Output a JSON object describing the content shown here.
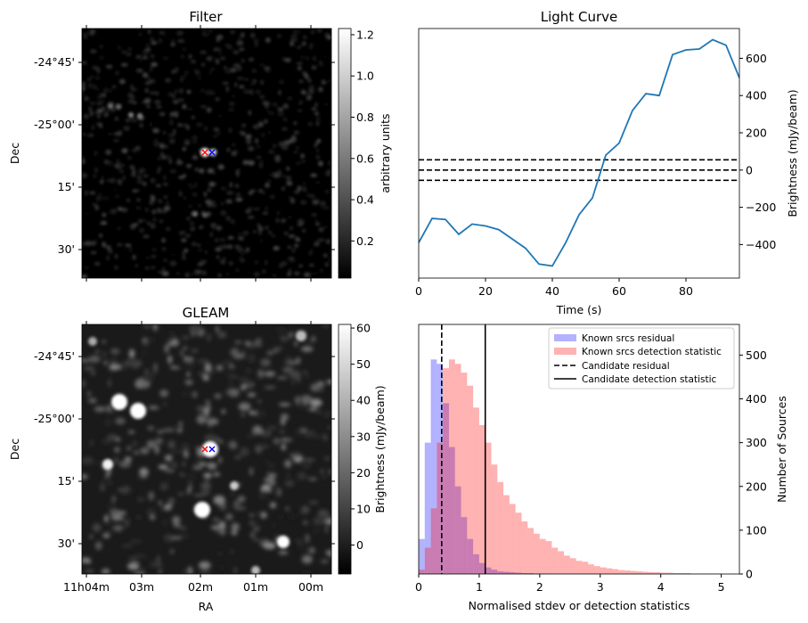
{
  "chart_data": [
    {
      "panel": "filter",
      "type": "heatmap",
      "title": "Filter",
      "xlabel": "",
      "ylabel": "Dec",
      "y_ticks": [
        "-24°45'",
        "-25°00'",
        "15'",
        "30'"
      ],
      "colorbar": {
        "label": "arbitrary units",
        "ticks": [
          "0.2",
          "0.4",
          "0.6",
          "0.8",
          "1.0",
          "1.2"
        ],
        "range": [
          0.02,
          1.23
        ],
        "colormap": "gray"
      },
      "markers": [
        {
          "symbol": "x",
          "color": "#ff0000"
        },
        {
          "symbol": "x",
          "color": "#0000ff"
        }
      ]
    },
    {
      "panel": "light-curve",
      "type": "line",
      "title": "Light Curve",
      "xlabel": "Time (s)",
      "ylabel": "Brightness (mJy/beam)",
      "xlim": [
        0,
        96
      ],
      "ylim": [
        -580,
        760
      ],
      "x_ticks": [
        0,
        20,
        40,
        60,
        80
      ],
      "y_ticks": [
        -400,
        -200,
        0,
        200,
        400,
        600
      ],
      "series": [
        {
          "color": "#1f77b4",
          "x": [
            0,
            4,
            8,
            12,
            16,
            20,
            24,
            28,
            32,
            36,
            40,
            44,
            48,
            52,
            56,
            60,
            64,
            68,
            72,
            76,
            80,
            84,
            88,
            92,
            96
          ],
          "y": [
            -390,
            -260,
            -265,
            -345,
            -290,
            -300,
            -320,
            -370,
            -420,
            -505,
            -515,
            -390,
            -240,
            -150,
            80,
            145,
            320,
            410,
            400,
            620,
            645,
            650,
            700,
            670,
            495
          ]
        }
      ],
      "hlines": [
        {
          "y": 55,
          "style": "dashed",
          "color": "#000000"
        },
        {
          "y": 0,
          "style": "dashed",
          "color": "#000000"
        },
        {
          "y": -55,
          "style": "dashed",
          "color": "#000000"
        }
      ]
    },
    {
      "panel": "gleam",
      "type": "heatmap",
      "title": "GLEAM",
      "xlabel": "RA",
      "ylabel": "Dec",
      "x_ticks": [
        "11h04m",
        "03m",
        "02m",
        "01m",
        "00m"
      ],
      "y_ticks": [
        "-24°45'",
        "-25°00'",
        "15'",
        "30'"
      ],
      "colorbar": {
        "label": "Brightness (mJy/beam)",
        "ticks": [
          "0",
          "10",
          "20",
          "30",
          "40",
          "50",
          "60"
        ],
        "range": [
          -8,
          61
        ],
        "colormap": "gray"
      },
      "markers": [
        {
          "symbol": "x",
          "color": "#ff0000"
        },
        {
          "symbol": "x",
          "color": "#0000ff"
        }
      ]
    },
    {
      "panel": "histogram",
      "type": "bar",
      "title": "",
      "xlabel": "Normalised stdev or detection statistics",
      "ylabel": "Number of Sources",
      "xlim": [
        0,
        5.3
      ],
      "ylim": [
        0,
        570
      ],
      "x_ticks": [
        0,
        1,
        2,
        3,
        4,
        5
      ],
      "y_ticks": [
        0,
        100,
        200,
        300,
        400,
        500
      ],
      "legend_position": "top-right",
      "series": [
        {
          "name": "Known srcs residual",
          "color": "#0000ff",
          "bin_width": 0.1,
          "bin_start": 0.0,
          "values": [
            80,
            300,
            490,
            480,
            390,
            290,
            200,
            130,
            80,
            45,
            25,
            15,
            10,
            6,
            5,
            4,
            3,
            2,
            2,
            1,
            1,
            1,
            0,
            0,
            0,
            0,
            0,
            0,
            0,
            0
          ]
        },
        {
          "name": "Known srcs detection statistic",
          "color": "#ff0000",
          "bin_width": 0.1,
          "bin_start": 0.0,
          "values": [
            10,
            60,
            150,
            300,
            470,
            490,
            480,
            460,
            430,
            380,
            340,
            300,
            250,
            210,
            180,
            160,
            140,
            120,
            105,
            92,
            80,
            75,
            60,
            52,
            42,
            36,
            30,
            28,
            22,
            18,
            15,
            13,
            11,
            9,
            8,
            7,
            6,
            5,
            4,
            4,
            3,
            3,
            2,
            2,
            2,
            1,
            1,
            1,
            1,
            1
          ]
        }
      ],
      "vlines": [
        {
          "name": "Candidate residual",
          "x": 0.38,
          "style": "dashed",
          "color": "#000000"
        },
        {
          "name": "Candidate detection statistic",
          "x": 1.1,
          "style": "solid",
          "color": "#000000"
        }
      ]
    }
  ]
}
